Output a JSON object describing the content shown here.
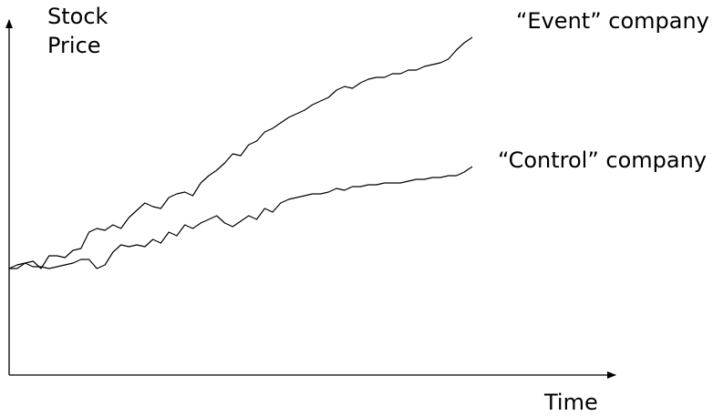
{
  "chart_data": {
    "type": "line",
    "title": "",
    "ylabel_lines": [
      "Stock",
      "Price"
    ],
    "xlabel": "Time",
    "grid": false,
    "legend": "inline labels at line ends",
    "series": [
      {
        "name": "“Event” company",
        "color": "#000000",
        "x": [
          0,
          1,
          2,
          3,
          4,
          5,
          6,
          7,
          8,
          9,
          10,
          11,
          12,
          13,
          14,
          15,
          16,
          17,
          18,
          19,
          20,
          21,
          22,
          23,
          24,
          25,
          26,
          27,
          28,
          29,
          30,
          31,
          32,
          33,
          34,
          35,
          36,
          37,
          38,
          39,
          40,
          41,
          42,
          43,
          44,
          45,
          46,
          47,
          48,
          49,
          50,
          51,
          52,
          53,
          54,
          55,
          56,
          57,
          58
        ],
        "y": [
          0,
          0,
          0.3,
          0.4,
          0,
          0.7,
          0.7,
          0.6,
          1.0,
          1.1,
          2.0,
          2.2,
          2.1,
          2.4,
          2.2,
          2.8,
          3.2,
          3.6,
          3.4,
          3.3,
          3.9,
          4.1,
          4.2,
          4.0,
          4.7,
          5.1,
          5.4,
          5.8,
          6.3,
          6.2,
          6.8,
          7.0,
          7.5,
          7.7,
          8.0,
          8.3,
          8.5,
          8.7,
          9.0,
          9.2,
          9.4,
          9.8,
          10.0,
          9.9,
          10.2,
          10.4,
          10.5,
          10.5,
          10.7,
          10.7,
          10.9,
          10.9,
          11.1,
          11.2,
          11.3,
          11.5,
          12.0,
          12.4,
          12.7
        ]
      },
      {
        "name": "“Control” company",
        "color": "#000000",
        "x": [
          0,
          1,
          2,
          3,
          4,
          5,
          6,
          7,
          8,
          9,
          10,
          11,
          12,
          13,
          14,
          15,
          16,
          17,
          18,
          19,
          20,
          21,
          22,
          23,
          24,
          25,
          26,
          27,
          28,
          29,
          30,
          31,
          32,
          33,
          34,
          35,
          36,
          37,
          38,
          39,
          40,
          41,
          42,
          43,
          44,
          45,
          46,
          47,
          48,
          49,
          50,
          51,
          52,
          53,
          54,
          55,
          56,
          57,
          58
        ],
        "y": [
          0,
          0.2,
          0.3,
          0.1,
          0.1,
          0,
          0.1,
          0.2,
          0.3,
          0.5,
          0.5,
          0,
          0.2,
          0.9,
          1.3,
          1.2,
          1.3,
          1.2,
          1.6,
          1.4,
          2.0,
          1.8,
          2.4,
          2.2,
          2.5,
          2.7,
          2.9,
          2.5,
          2.3,
          2.6,
          2.9,
          2.7,
          3.3,
          3.1,
          3.6,
          3.8,
          3.9,
          4.0,
          4.1,
          4.1,
          4.2,
          4.4,
          4.3,
          4.5,
          4.5,
          4.6,
          4.6,
          4.7,
          4.7,
          4.7,
          4.8,
          4.9,
          4.9,
          5.0,
          5.0,
          5.1,
          5.1,
          5.3,
          5.6
        ]
      }
    ]
  }
}
